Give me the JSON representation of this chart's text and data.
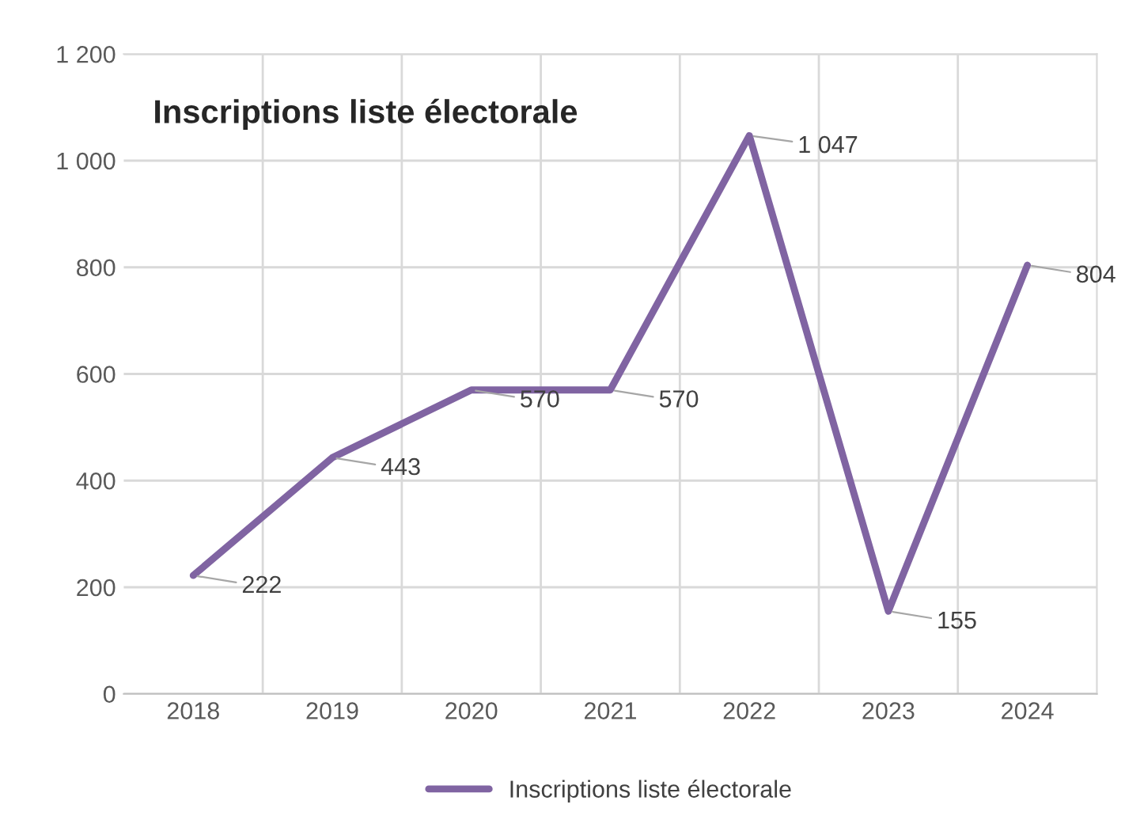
{
  "chart_data": {
    "type": "line",
    "title": "Inscriptions liste électorale",
    "categories": [
      "2018",
      "2019",
      "2020",
      "2021",
      "2022",
      "2023",
      "2024"
    ],
    "series": [
      {
        "name": "Inscriptions liste électorale",
        "color": "#8064a2",
        "values": [
          222,
          443,
          570,
          570,
          1047,
          155,
          804
        ],
        "value_labels": [
          "222",
          "443",
          "570",
          "570",
          "1 047",
          "155",
          "804"
        ]
      }
    ],
    "ylim": [
      0,
      1200
    ],
    "yticks": [
      0,
      200,
      400,
      600,
      800,
      {
        "value": 1000,
        "label": "1 000"
      },
      {
        "value": 1200,
        "label": "1 200"
      }
    ],
    "grid": true,
    "legend": "bottom",
    "marker": "none",
    "line_style": "solid"
  }
}
